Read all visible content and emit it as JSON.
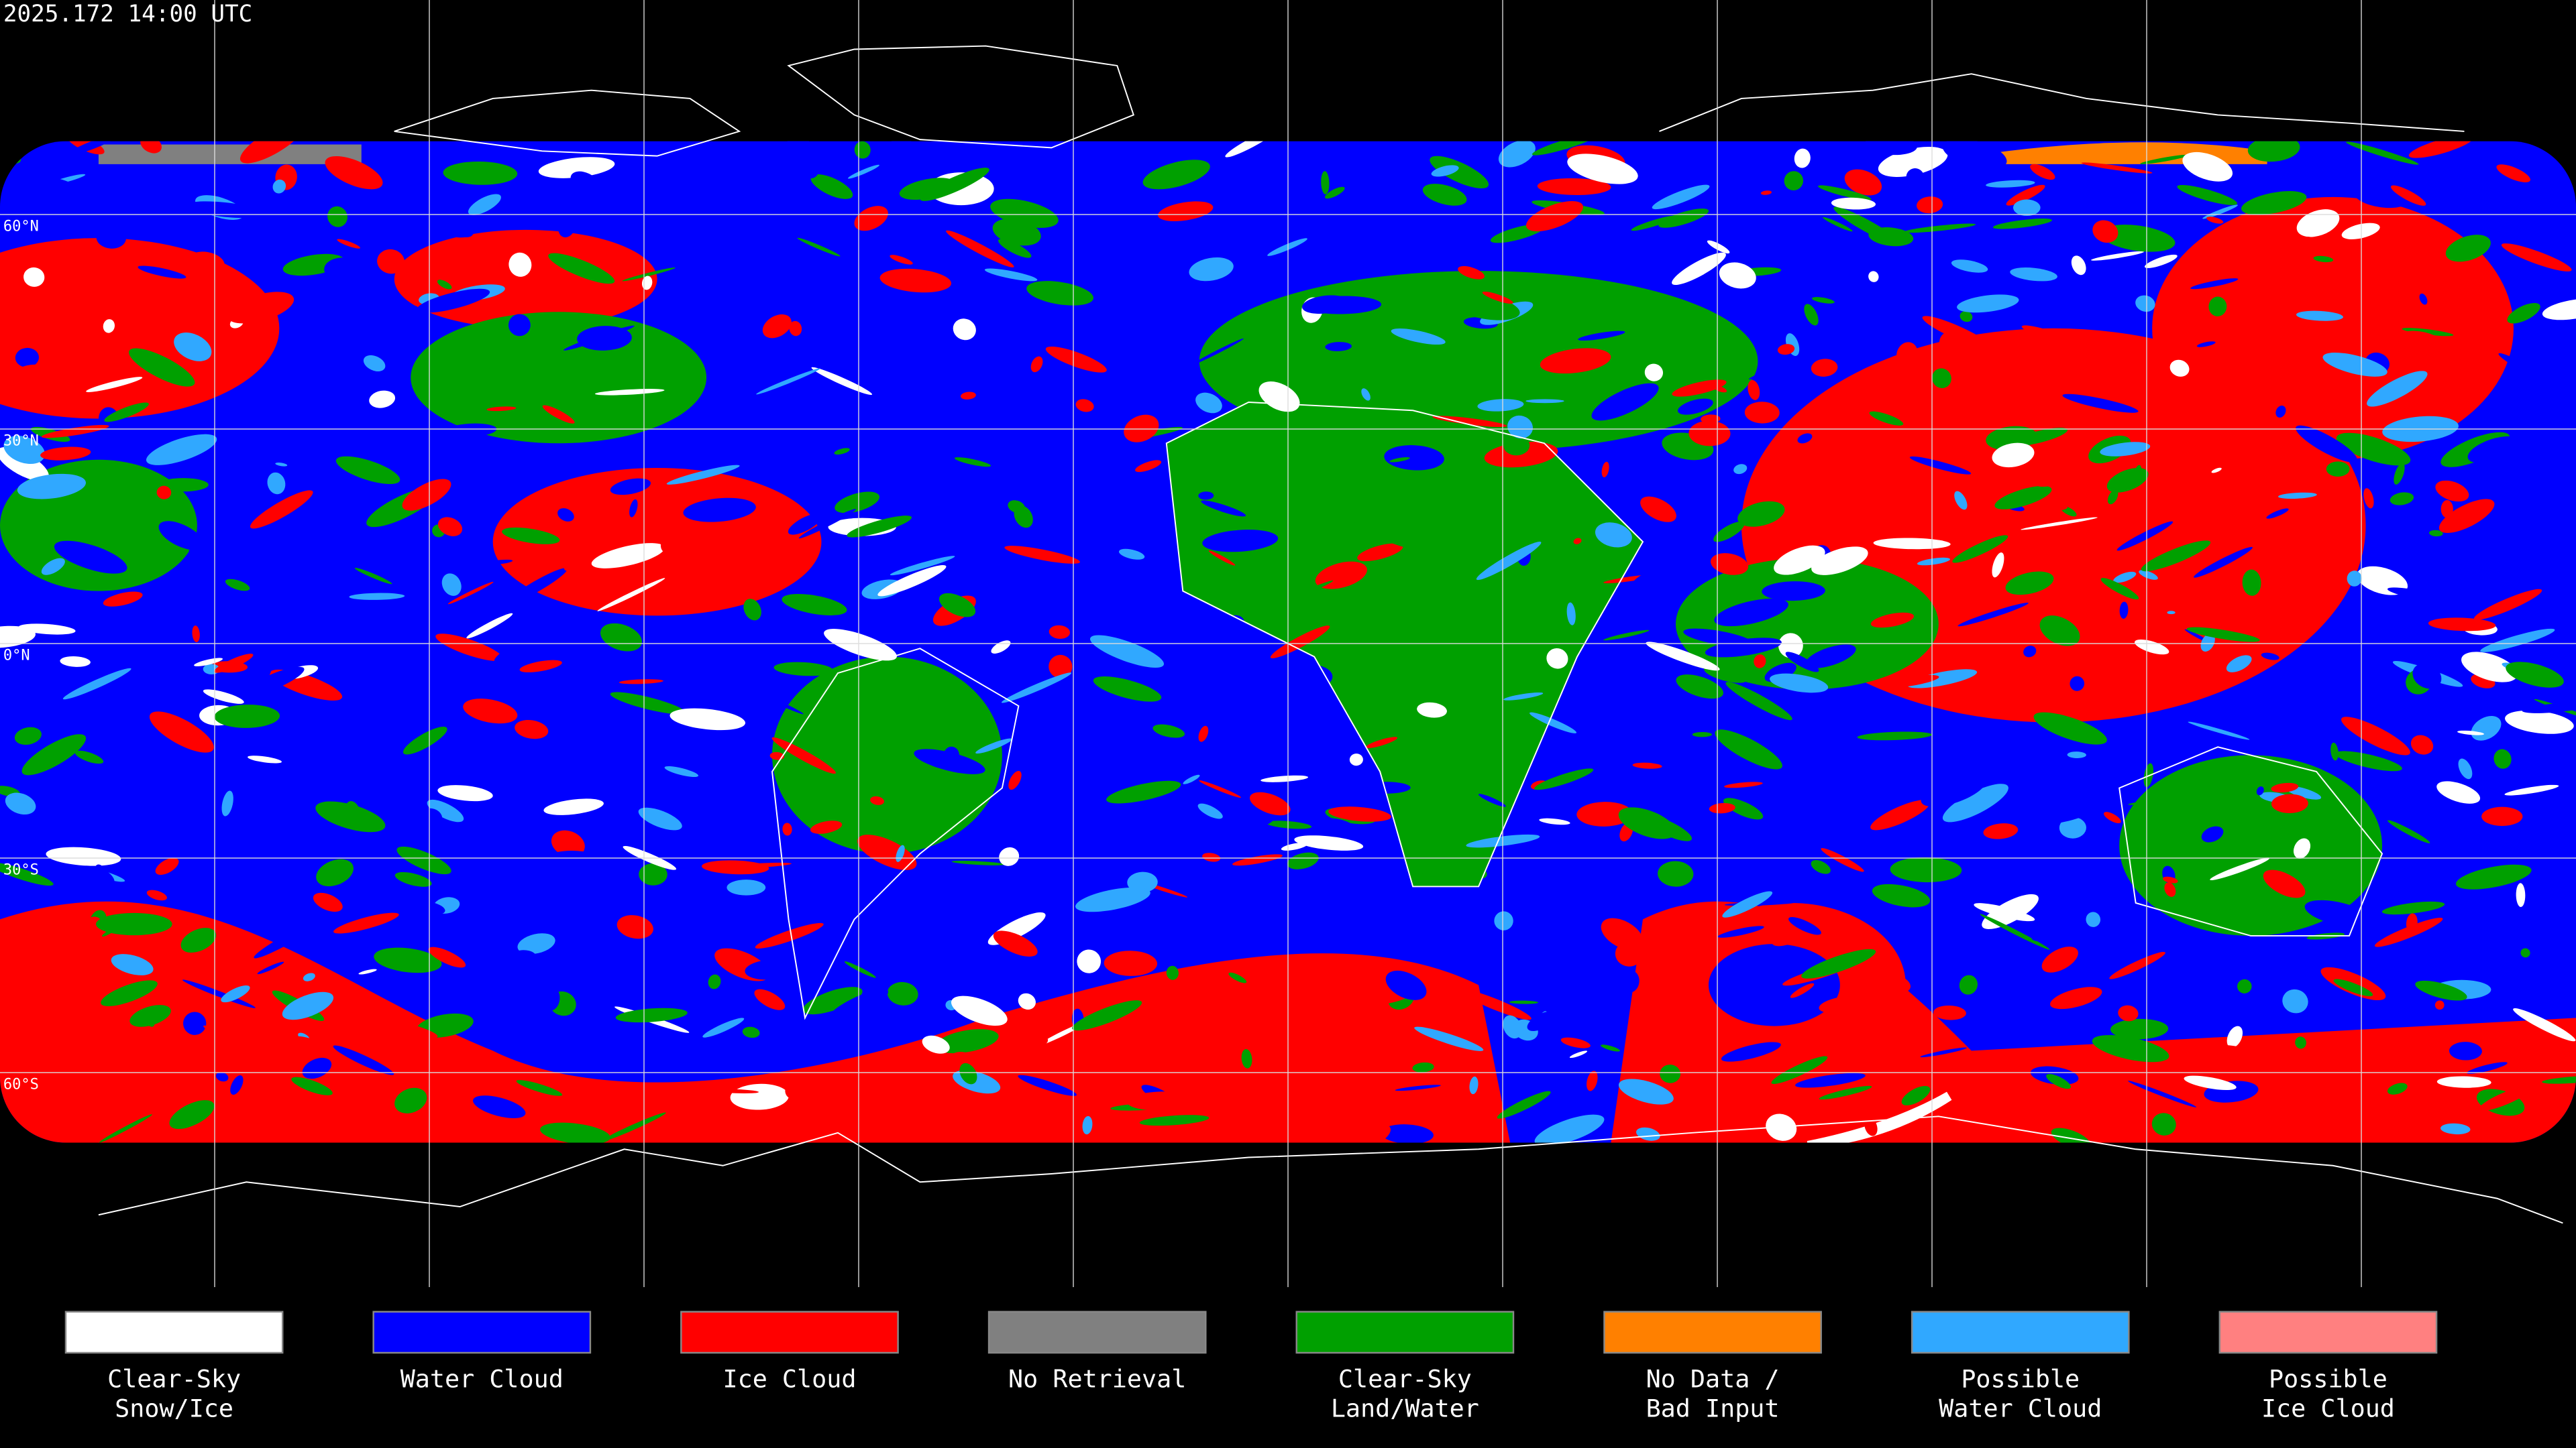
{
  "header": {
    "timestamp": "2025.172 14:00 UTC"
  },
  "map": {
    "latitude_labels": [
      "60°N",
      "30°N",
      "0°N",
      "30°S",
      "60°S"
    ]
  },
  "legend": [
    {
      "color": "#ffffff",
      "label_lines": [
        "Clear-Sky",
        "Snow/Ice"
      ]
    },
    {
      "color": "#0000ff",
      "label_lines": [
        "Water Cloud"
      ]
    },
    {
      "color": "#ff0000",
      "label_lines": [
        "Ice Cloud"
      ]
    },
    {
      "color": "#808080",
      "label_lines": [
        "No Retrieval"
      ]
    },
    {
      "color": "#00a000",
      "label_lines": [
        "Clear-Sky",
        "Land/Water"
      ]
    },
    {
      "color": "#ff8000",
      "label_lines": [
        "No Data /",
        "Bad Input"
      ]
    },
    {
      "color": "#30a8ff",
      "label_lines": [
        "Possible",
        "Water Cloud"
      ]
    },
    {
      "color": "#ff8080",
      "label_lines": [
        "Possible",
        "Ice Cloud"
      ]
    }
  ]
}
